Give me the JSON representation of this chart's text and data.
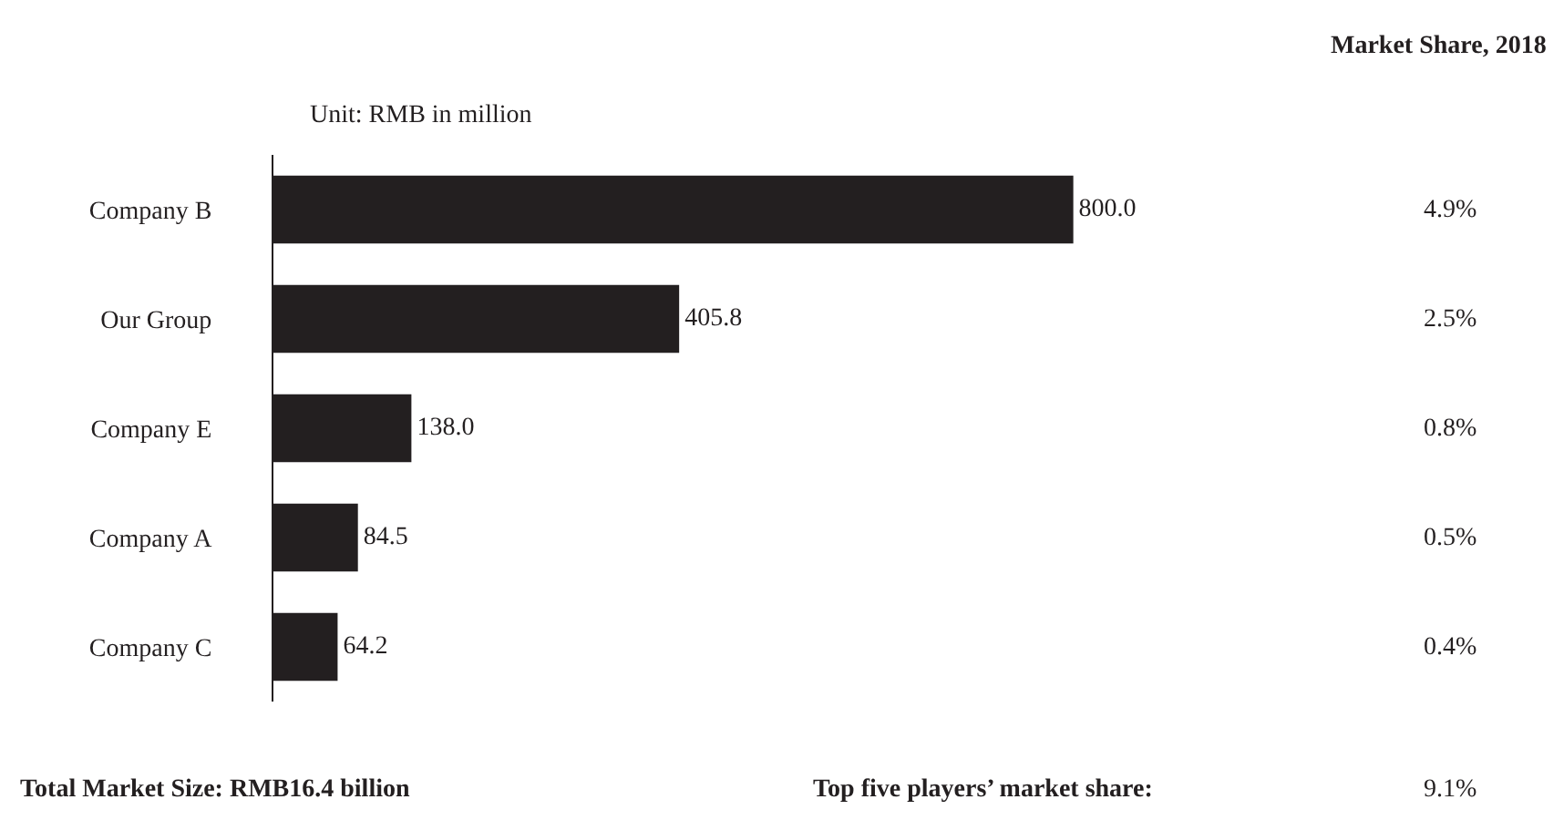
{
  "chart_data": {
    "type": "bar",
    "orientation": "horizontal",
    "subtitle": "Unit: RMB in million",
    "categories": [
      "Company B",
      "Our Group",
      "Company E",
      "Company A",
      "Company C"
    ],
    "values": [
      800.0,
      405.8,
      138.0,
      84.5,
      64.2
    ],
    "value_labels": [
      "800.0",
      "405.8",
      "138.0",
      "84.5",
      "64.2"
    ],
    "color": "#231f20",
    "tick_labels": "y",
    "legend": false,
    "annotations": [
      "Market Share, 2018",
      "4.9%",
      "2.5%",
      "0.8%",
      "0.5%",
      "0.4%",
      "Total Market Size: RMB16.4 billion",
      "Top five players’ market share:",
      "9.1%"
    ]
  }
}
